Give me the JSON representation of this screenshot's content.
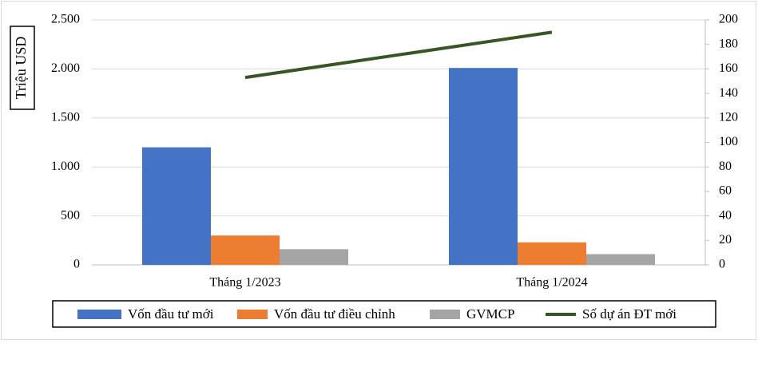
{
  "chart_data": {
    "type": "bar",
    "y_axis_title": "Triệu USD",
    "categories": [
      "Tháng 1/2023",
      "Tháng 1/2024"
    ],
    "series": [
      {
        "name": "Vốn đầu tư mới",
        "color": "#4472c4",
        "values": [
          1200,
          2010
        ]
      },
      {
        "name": "Vốn đầu tư điều chỉnh",
        "color": "#ed7d31",
        "values": [
          300,
          230
        ]
      },
      {
        "name": "GVMCP",
        "color": "#a5a5a5",
        "values": [
          160,
          110
        ]
      },
      {
        "name": "Số dự án ĐT mới",
        "type": "line",
        "axis": "y2",
        "color": "#375623",
        "values": [
          153,
          190
        ]
      }
    ],
    "ylim": [
      0,
      2500
    ],
    "yticks": [
      0,
      500,
      {
        "value": 1000,
        "label": "1.000"
      },
      {
        "value": 1500,
        "label": "1.500"
      },
      {
        "value": 2000,
        "label": "2.000"
      },
      {
        "value": 2500,
        "label": "2.500"
      }
    ],
    "y2lim": [
      0,
      200
    ],
    "y2ticks": [
      0,
      20,
      40,
      60,
      80,
      100,
      120,
      140,
      160,
      180,
      200
    ],
    "grid": true,
    "legend": "bottom"
  }
}
